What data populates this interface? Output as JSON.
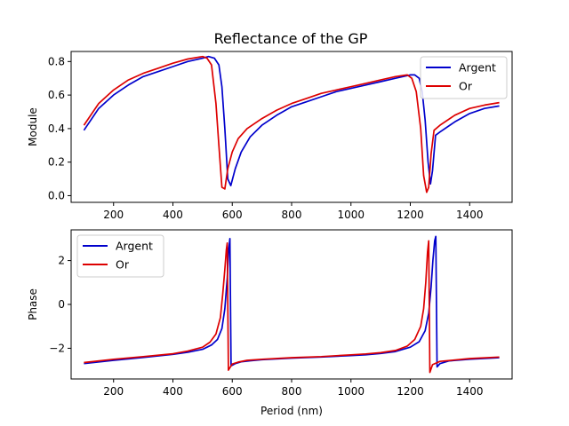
{
  "figure": {
    "title": "Reflectance of the GP"
  },
  "colors": {
    "argent": "#0000cc",
    "or": "#dd0000",
    "axis": "#000000",
    "legend_border": "#cccccc"
  },
  "chart_data": [
    {
      "type": "line",
      "title": "Reflectance of the GP",
      "xlabel": "",
      "ylabel": "Module",
      "xlim": [
        57,
        1543
      ],
      "ylim": [
        -0.04,
        0.86
      ],
      "xticks": [
        200,
        400,
        600,
        800,
        1000,
        1200,
        1400
      ],
      "yticks": [
        0.0,
        0.2,
        0.4,
        0.6,
        0.8
      ],
      "ytick_labels": [
        "0.0",
        "0.2",
        "0.4",
        "0.6",
        "0.8"
      ],
      "legend": "upper right",
      "series": [
        {
          "name": "Argent",
          "x": [
            100,
            150,
            200,
            250,
            300,
            350,
            400,
            450,
            500,
            520,
            540,
            555,
            565,
            575,
            585,
            595,
            610,
            630,
            660,
            700,
            750,
            800,
            850,
            900,
            950,
            1000,
            1050,
            1100,
            1150,
            1200,
            1215,
            1230,
            1240,
            1250,
            1260,
            1268,
            1275,
            1285,
            1300,
            1350,
            1400,
            1450,
            1500
          ],
          "y": [
            0.39,
            0.52,
            0.6,
            0.66,
            0.71,
            0.74,
            0.77,
            0.8,
            0.82,
            0.83,
            0.82,
            0.78,
            0.65,
            0.4,
            0.1,
            0.06,
            0.16,
            0.26,
            0.35,
            0.42,
            0.48,
            0.53,
            0.56,
            0.59,
            0.62,
            0.64,
            0.66,
            0.68,
            0.7,
            0.72,
            0.72,
            0.7,
            0.62,
            0.45,
            0.2,
            0.07,
            0.15,
            0.36,
            0.38,
            0.44,
            0.49,
            0.52,
            0.535
          ]
        },
        {
          "name": "Or",
          "x": [
            100,
            150,
            200,
            250,
            300,
            350,
            400,
            450,
            500,
            515,
            530,
            545,
            555,
            565,
            575,
            585,
            600,
            620,
            650,
            700,
            750,
            800,
            850,
            900,
            950,
            1000,
            1050,
            1100,
            1150,
            1190,
            1205,
            1220,
            1235,
            1245,
            1255,
            1262,
            1270,
            1280,
            1300,
            1350,
            1400,
            1450,
            1500
          ],
          "y": [
            0.42,
            0.55,
            0.63,
            0.69,
            0.73,
            0.76,
            0.79,
            0.815,
            0.83,
            0.82,
            0.78,
            0.55,
            0.3,
            0.05,
            0.04,
            0.16,
            0.26,
            0.34,
            0.4,
            0.46,
            0.51,
            0.55,
            0.58,
            0.61,
            0.63,
            0.65,
            0.67,
            0.69,
            0.71,
            0.72,
            0.7,
            0.62,
            0.4,
            0.12,
            0.02,
            0.05,
            0.25,
            0.39,
            0.42,
            0.48,
            0.52,
            0.54,
            0.555
          ]
        }
      ]
    },
    {
      "type": "line",
      "title": "",
      "xlabel": "Period (nm)",
      "ylabel": "Phase",
      "xlim": [
        57,
        1543
      ],
      "ylim": [
        -3.4,
        3.4
      ],
      "xticks": [
        200,
        400,
        600,
        800,
        1000,
        1200,
        1400
      ],
      "yticks": [
        -2,
        0,
        2
      ],
      "ytick_labels": [
        "−2",
        "0",
        "2"
      ],
      "legend": "upper left",
      "series": [
        {
          "name": "Argent",
          "x": [
            100,
            200,
            300,
            400,
            450,
            500,
            530,
            550,
            565,
            575,
            583,
            588,
            592,
            596,
            610,
            630,
            660,
            700,
            800,
            900,
            1000,
            1050,
            1100,
            1150,
            1200,
            1230,
            1250,
            1262,
            1270,
            1276,
            1282,
            1286,
            1290,
            1300,
            1330,
            1400,
            1500
          ],
          "y": [
            -2.7,
            -2.55,
            -2.42,
            -2.28,
            -2.18,
            -2.05,
            -1.85,
            -1.6,
            -1.1,
            -0.2,
            1.2,
            2.5,
            3.0,
            -2.8,
            -2.7,
            -2.62,
            -2.57,
            -2.52,
            -2.45,
            -2.4,
            -2.33,
            -2.3,
            -2.24,
            -2.15,
            -1.95,
            -1.7,
            -1.2,
            -0.4,
            0.8,
            2.0,
            2.9,
            3.1,
            -2.85,
            -2.7,
            -2.58,
            -2.5,
            -2.43
          ]
        },
        {
          "name": "Or",
          "x": [
            100,
            200,
            300,
            400,
            450,
            500,
            525,
            545,
            560,
            568,
            575,
            580,
            583,
            587,
            600,
            620,
            650,
            700,
            800,
            900,
            1000,
            1050,
            1100,
            1150,
            1190,
            1215,
            1235,
            1245,
            1252,
            1258,
            1262,
            1266,
            1275,
            1300,
            1400,
            1500
          ],
          "y": [
            -2.65,
            -2.5,
            -2.38,
            -2.25,
            -2.13,
            -1.95,
            -1.72,
            -1.35,
            -0.6,
            0.5,
            1.6,
            2.5,
            2.8,
            -3.0,
            -2.72,
            -2.63,
            -2.55,
            -2.5,
            -2.43,
            -2.38,
            -2.3,
            -2.26,
            -2.2,
            -2.1,
            -1.9,
            -1.6,
            -1.0,
            -0.2,
            1.0,
            2.4,
            2.9,
            -3.1,
            -2.75,
            -2.6,
            -2.47,
            -2.4
          ]
        }
      ]
    }
  ]
}
